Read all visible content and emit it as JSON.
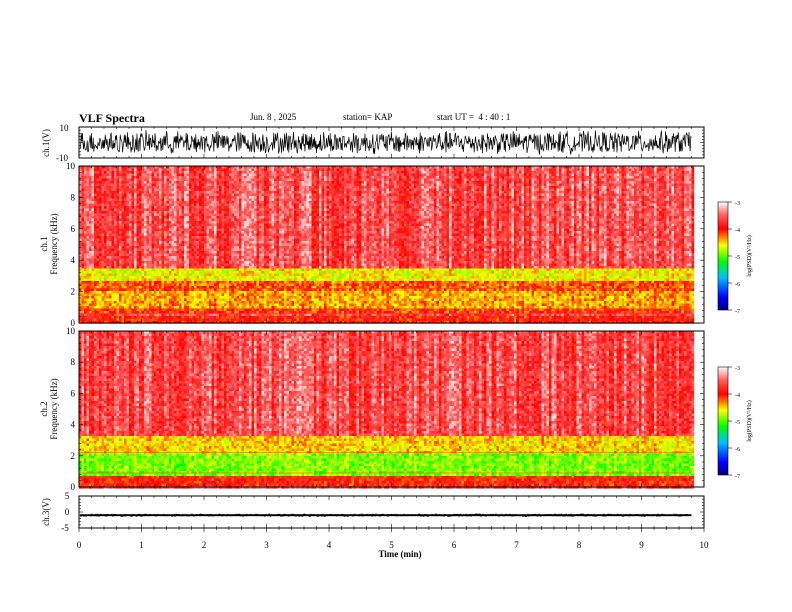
{
  "header": {
    "title": "VLF Spectra",
    "date": "Jun. 8 , 2025",
    "station": "station= KAP",
    "start": "start UT =  4 : 40 : 1"
  },
  "chart_data": [
    {
      "type": "line",
      "name": "ch1-waveform",
      "ylabel": "ch.1(V)",
      "ylim": [
        -10,
        10
      ],
      "ytick_labels": [
        "10",
        "-10"
      ],
      "xlim": [
        0,
        10
      ],
      "description_of_series": "noise waveform spanning roughly -8 to 8 V over 0-9.8 min"
    },
    {
      "type": "heatmap",
      "name": "ch1-spectrogram",
      "ylabel": "ch.1\nFrequency (kHz)",
      "ylabel_line1": "ch.1",
      "ylabel_line2": "Frequency (kHz)",
      "ylim": [
        0,
        10
      ],
      "ytick_labels": [
        "0",
        "2",
        "4",
        "6",
        "8",
        "10"
      ],
      "xlim": [
        0,
        10
      ],
      "data_extent_min": 9.8,
      "bands_khz": [
        {
          "from": 0.0,
          "to": 0.5,
          "level": -4.0
        },
        {
          "from": 0.6,
          "to": 1.0,
          "level": -4.1
        },
        {
          "from": 1.0,
          "to": 2.0,
          "level": -4.4
        },
        {
          "from": 2.0,
          "to": 2.6,
          "level": -4.2
        },
        {
          "from": 2.6,
          "to": 3.4,
          "level": -4.6
        },
        {
          "from": 3.4,
          "to": 10.0,
          "level": -3.6
        }
      ],
      "colorbar": {
        "label": "log(PSD)(V²/Hz)",
        "ticks": [
          "-3",
          "-4",
          "-5",
          "-6",
          "-7"
        ],
        "range": [
          -7,
          -3
        ]
      }
    },
    {
      "type": "heatmap",
      "name": "ch2-spectrogram",
      "ylabel_line1": "ch.2",
      "ylabel_line2": "Frequency (kHz)",
      "ylim": [
        0,
        10
      ],
      "ytick_labels": [
        "0",
        "2",
        "4",
        "6",
        "8",
        "10"
      ],
      "xlim": [
        0,
        10
      ],
      "data_extent_min": 9.8,
      "bands_khz": [
        {
          "from": 0.0,
          "to": 0.7,
          "level": -4.0
        },
        {
          "from": 0.7,
          "to": 2.1,
          "level": -4.9
        },
        {
          "from": 2.1,
          "to": 3.2,
          "level": -4.5
        },
        {
          "from": 3.2,
          "to": 10.0,
          "level": -3.6
        }
      ],
      "colorbar": {
        "label": "log(PSD)(V²/Hz)",
        "ticks": [
          "-3",
          "-4",
          "-5",
          "-6",
          "-7"
        ],
        "range": [
          -7,
          -3
        ]
      }
    },
    {
      "type": "line",
      "name": "ch3-waveform",
      "ylabel": "ch.3(V)",
      "ylim": [
        -5,
        5
      ],
      "ytick_labels": [
        "5",
        "0",
        "-5"
      ],
      "xlim": [
        0,
        10
      ],
      "description_of_series": "nearly constant thick band around -1 V from 0 to 9.8 min"
    }
  ],
  "xaxis": {
    "label": "Time (min)",
    "ticks": [
      "0",
      "1",
      "2",
      "3",
      "4",
      "5",
      "6",
      "7",
      "8",
      "9",
      "10"
    ],
    "range": [
      0,
      10
    ]
  },
  "colors": {
    "spectrum_high": "#ff0000",
    "spectrum_mid": "#ffff00",
    "spectrum_low": "#00ff00",
    "background": "#ffffff",
    "axis": "#000000"
  }
}
